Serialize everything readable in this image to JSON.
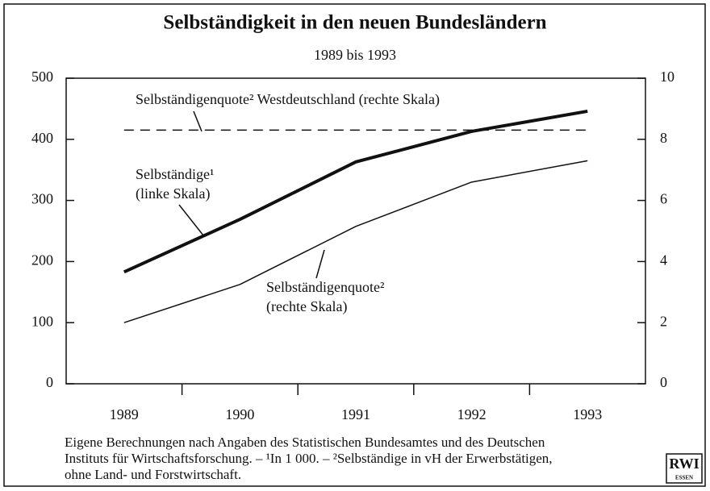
{
  "chart_data": {
    "type": "line",
    "title": "Selbständigkeit in den neuen Bundesländern",
    "subtitle": "1989 bis 1993",
    "categories": [
      "1989",
      "1990",
      "1991",
      "1992",
      "1993"
    ],
    "series": [
      {
        "color": "#111111",
        "width": 4,
        "values": [
          183,
          269,
          363,
          413,
          446
        ]
      },
      {
        "color": "#111111",
        "width": 1.5,
        "axis": "y2",
        "values": [
          2.0,
          3.25,
          5.15,
          6.6,
          7.3
        ]
      },
      {
        "color": "#111111",
        "width": 1.5,
        "dash": true,
        "axis": "y2",
        "values": [
          8.3,
          8.3,
          8.3,
          8.3,
          8.3
        ]
      }
    ],
    "ylim": [
      0,
      500
    ],
    "yticks": [
      0,
      100,
      200,
      300,
      400,
      500
    ],
    "y2lim": [
      0,
      10
    ],
    "y2ticks": [
      0,
      2,
      4,
      6,
      8,
      10
    ],
    "annotations": [
      {
        "lines": [
          "Selbständigenquote² Westdeutschland (rechte Skala)"
        ]
      },
      {
        "lines": [
          "Selbständige¹",
          "(linke Skala)"
        ]
      },
      {
        "lines": [
          "Selbständigenquote²",
          "(rechte Skala)"
        ]
      }
    ],
    "footnote": [
      "Eigene Berechnungen nach Angaben des Statistischen Bundesamtes und des Deutschen",
      "Instituts für Wirtschaftsforschung. – ¹In 1 000. – ²Selbständige in vH der Erwerbstätigen,",
      "ohne Land- und Forstwirtschaft."
    ],
    "logo": [
      "RWI",
      "ESSEN"
    ]
  }
}
